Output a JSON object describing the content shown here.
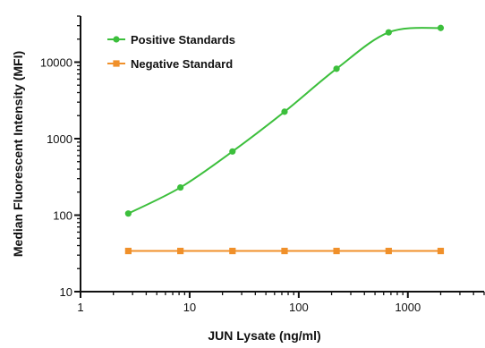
{
  "chart_data": {
    "type": "line",
    "xlabel": "JUN Lysate (ng/ml)",
    "ylabel": "Median Fluorescent Intensity (MFI)",
    "x_scale": "log",
    "y_scale": "log",
    "xlim": [
      1,
      5000
    ],
    "ylim": [
      10,
      40000
    ],
    "x_ticks": [
      1,
      10,
      100,
      1000
    ],
    "x_tick_labels": [
      "1",
      "10",
      "100",
      "1000"
    ],
    "y_ticks": [
      10,
      100,
      1000,
      10000
    ],
    "y_tick_labels": [
      "10",
      "100",
      "1000",
      "10000"
    ],
    "legend_position": "top-left",
    "grid": false,
    "series": [
      {
        "name": "Positive Standards",
        "color": "#3cbf3c",
        "marker": "circle",
        "x": [
          2.74,
          8.23,
          24.7,
          74.1,
          222,
          667,
          2000
        ],
        "y": [
          105,
          230,
          680,
          2250,
          8200,
          24500,
          28000
        ]
      },
      {
        "name": "Negative Standard",
        "color": "#f0902a",
        "marker": "square",
        "x": [
          2.74,
          8.23,
          24.7,
          74.1,
          222,
          667,
          2000
        ],
        "y": [
          34,
          34,
          34,
          34,
          34,
          34,
          34
        ]
      }
    ]
  }
}
